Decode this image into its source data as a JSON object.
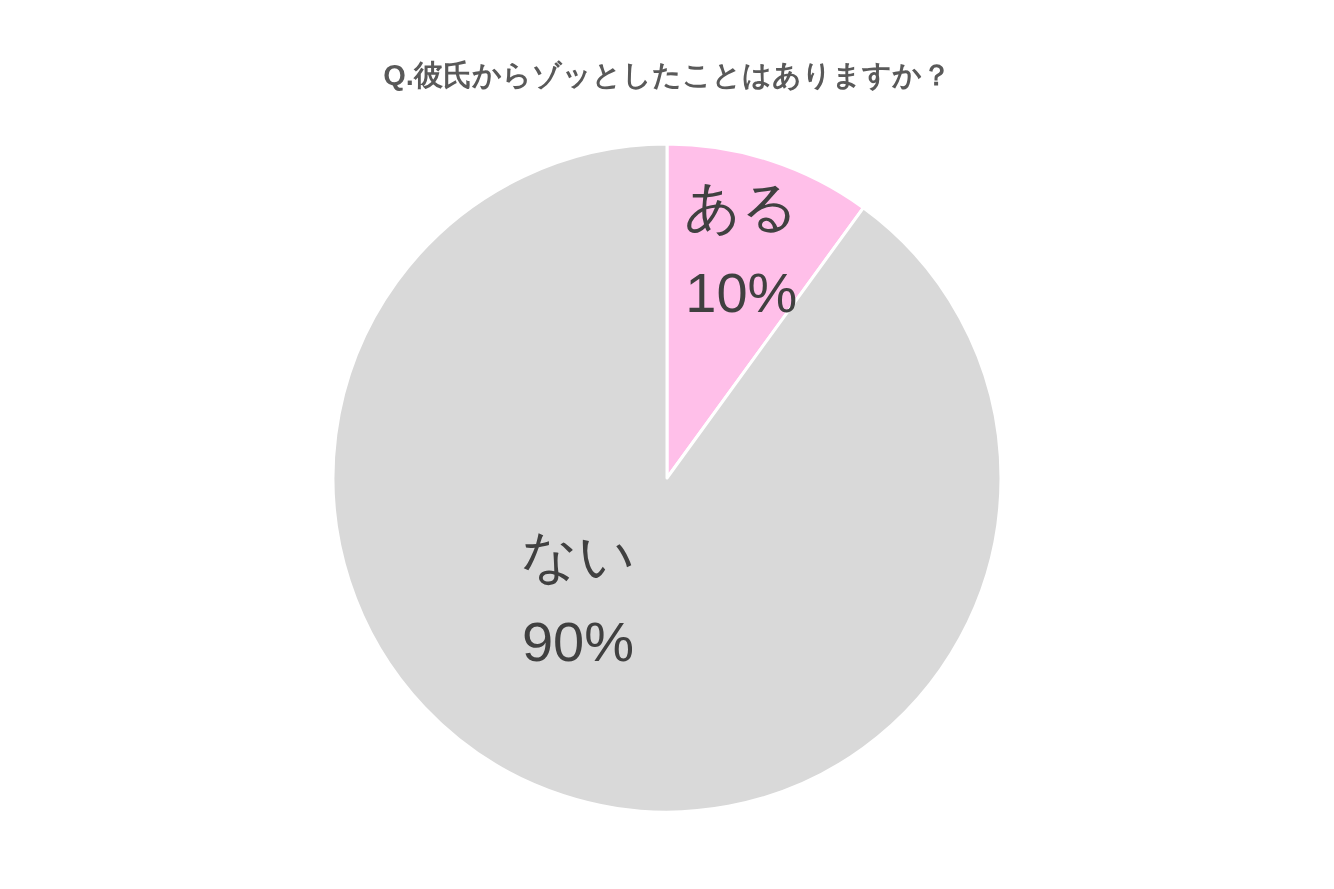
{
  "chart_data": {
    "type": "pie",
    "title": "Q.彼氏からゾッとしたことはありますか？",
    "categories": [
      "ある",
      "ない"
    ],
    "values": [
      10,
      90
    ],
    "colors": [
      "#ffbfe9",
      "#d9d9d9"
    ],
    "value_labels": [
      "10%",
      "90%"
    ]
  }
}
